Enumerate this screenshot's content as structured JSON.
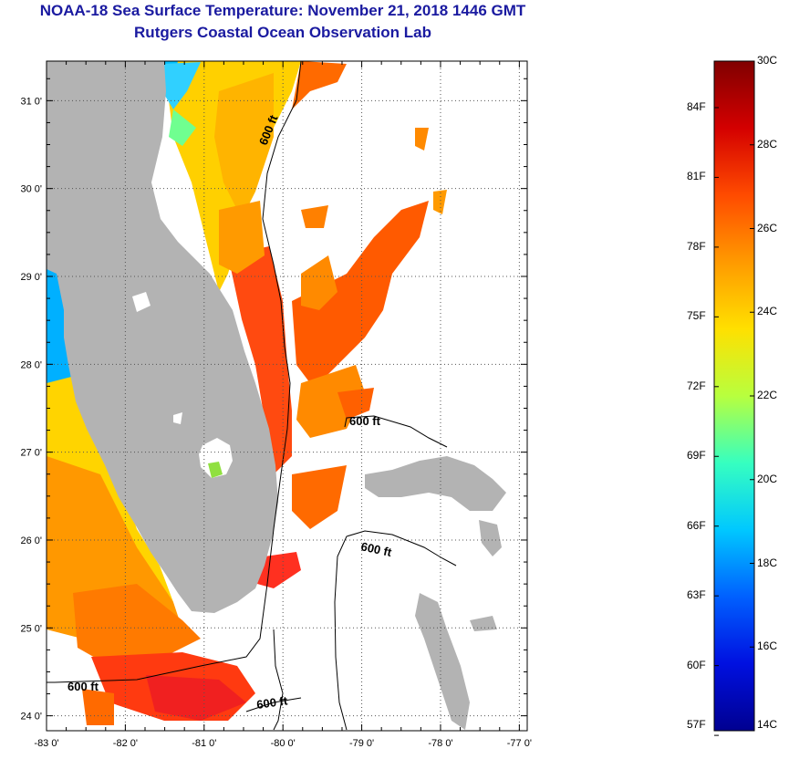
{
  "title": "NOAA-18 Sea Surface Temperature:  November 21, 2018 1446 GMT",
  "subtitle": "Rutgers Coastal Ocean Observation Lab",
  "map": {
    "lon_ticks": [
      {
        "value": -83,
        "label": "-83 0'"
      },
      {
        "value": -82,
        "label": "-82 0'"
      },
      {
        "value": -81,
        "label": "-81 0'"
      },
      {
        "value": -80,
        "label": "-80 0'"
      },
      {
        "value": -79,
        "label": "-79 0'"
      },
      {
        "value": -78,
        "label": "-78 0'"
      },
      {
        "value": -77,
        "label": "-77 0'"
      }
    ],
    "lat_ticks": [
      {
        "value": 31,
        "label": "31 0'"
      },
      {
        "value": 30,
        "label": "30 0'"
      },
      {
        "value": 29,
        "label": "29 0'"
      },
      {
        "value": 28,
        "label": "28 0'"
      },
      {
        "value": 27,
        "label": "27 0'"
      },
      {
        "value": 26,
        "label": "26 0'"
      },
      {
        "value": 25,
        "label": "25 0'"
      },
      {
        "value": 24,
        "label": "24 0'"
      }
    ],
    "lon_range": [
      -83,
      -76.9
    ],
    "lat_range": [
      23.83,
      31.45
    ],
    "contour_label": "600 ft",
    "land_color": "#b3b3b3"
  },
  "colorbar": {
    "celsius": [
      "30C",
      "28C",
      "26C",
      "24C",
      "22C",
      "20C",
      "18C",
      "16C",
      "14C"
    ],
    "fahrenheit": [
      "84F",
      "81F",
      "78F",
      "75F",
      "72F",
      "69F",
      "66F",
      "63F",
      "60F",
      "57F"
    ],
    "colors": [
      "#800000",
      "#d40000",
      "#ff4b00",
      "#ff9a00",
      "#ffe000",
      "#b8ff3e",
      "#36ffc0",
      "#00c8ff",
      "#0060ff",
      "#0010e0",
      "#000090"
    ]
  }
}
